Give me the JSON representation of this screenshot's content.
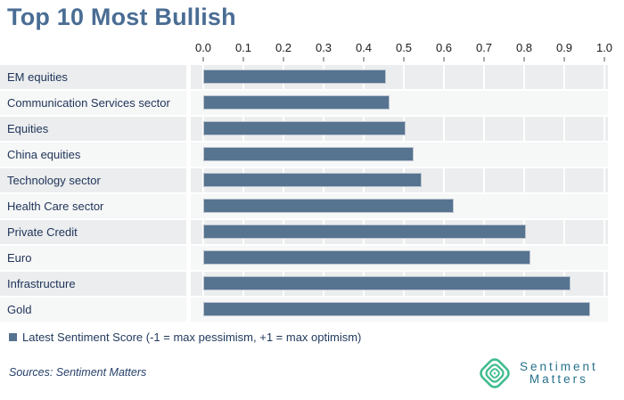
{
  "title": "Top 10 Most Bullish",
  "chart_data": {
    "type": "bar",
    "orientation": "horizontal",
    "title": "Top 10 Most Bullish",
    "categories": [
      "EM equities",
      "Communication Services sector",
      "Equities",
      "China equities",
      "Technology sector",
      "Health Care sector",
      "Private Credit",
      "Euro",
      "Infrastructure",
      "Gold"
    ],
    "values": [
      0.45,
      0.46,
      0.5,
      0.52,
      0.54,
      0.62,
      0.8,
      0.81,
      0.91,
      0.96
    ],
    "series_name": "Latest Sentiment Score (-1 = max pessimism, +1 = max optimism)",
    "xlim": [
      0.0,
      1.0
    ],
    "x_ticks": [
      "0.0",
      "0.1",
      "0.2",
      "0.3",
      "0.4",
      "0.5",
      "0.6",
      "0.7",
      "0.8",
      "0.9",
      "1.0"
    ],
    "grid": true,
    "legend_position": "bottom"
  },
  "legend": {
    "label": "Latest Sentiment Score (-1 = max pessimism, +1 = max optimism)"
  },
  "footer": {
    "sources": "Sources: Sentiment Matters"
  },
  "logo": {
    "line1": "Sentiment",
    "line2": "Matters"
  },
  "colors": {
    "bar": "#567390",
    "bar_border": "#bcc5d0",
    "title": "#4a6d94",
    "label_text": "#21355a",
    "row_stripe_a": "#ebedee",
    "row_stripe_b": "#f6f7f7",
    "tick_text": "#1a1a1a",
    "legend_text": "#223a5e",
    "sources_text": "#27406a",
    "logo_green": "#3fbc8e",
    "logo_text": "#26708a"
  }
}
